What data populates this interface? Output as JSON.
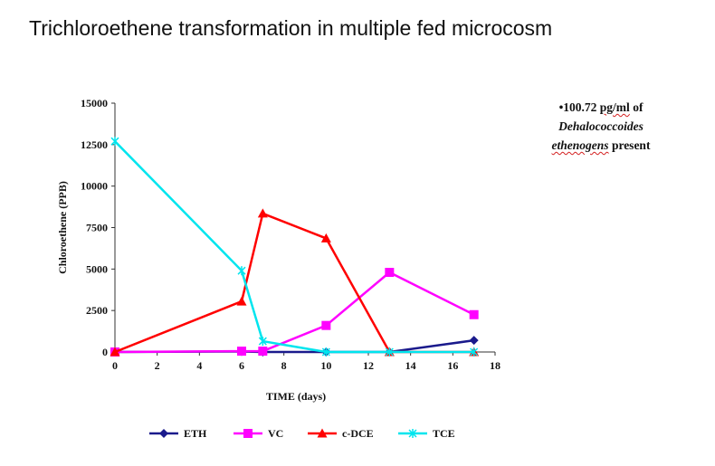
{
  "title": "Trichloroethene transformation in multiple fed microcosm",
  "note": {
    "bullet": "•",
    "line1_value": "100.72",
    "line1_unit": "pg/ml",
    "line1_rest": "of",
    "line2": "Dehalococcoides",
    "line3_species": "ethenogens",
    "line3_rest": "present"
  },
  "chart_data": {
    "type": "line",
    "title": "",
    "xlabel": "TIME (days)",
    "ylabel": "Chloroethene (PPB)",
    "xlim": [
      0,
      18
    ],
    "ylim": [
      0,
      15000
    ],
    "xticks": [
      0,
      2,
      4,
      6,
      8,
      10,
      12,
      14,
      16,
      18
    ],
    "yticks": [
      0,
      2500,
      5000,
      7500,
      10000,
      12500,
      15000
    ],
    "grid": false,
    "legend": "bottom",
    "series": [
      {
        "name": "ETH",
        "color": "#1a1a8c",
        "marker": "diamond",
        "x": [
          0,
          6,
          7,
          10,
          13,
          17
        ],
        "y": [
          0,
          30,
          0,
          0,
          0,
          700
        ]
      },
      {
        "name": "VC",
        "color": "#ff00ff",
        "marker": "square",
        "x": [
          0,
          6,
          7,
          10,
          13,
          17
        ],
        "y": [
          0,
          50,
          50,
          1600,
          4800,
          2250
        ]
      },
      {
        "name": "c-DCE",
        "color": "#ff0000",
        "marker": "triangle",
        "x": [
          0,
          6,
          7,
          10,
          13,
          17
        ],
        "y": [
          0,
          3050,
          8350,
          6850,
          0,
          0
        ]
      },
      {
        "name": "TCE",
        "color": "#00e5ee",
        "marker": "star",
        "x": [
          0,
          6,
          7,
          10,
          13,
          17
        ],
        "y": [
          12700,
          4900,
          650,
          0,
          0,
          0
        ]
      }
    ]
  }
}
